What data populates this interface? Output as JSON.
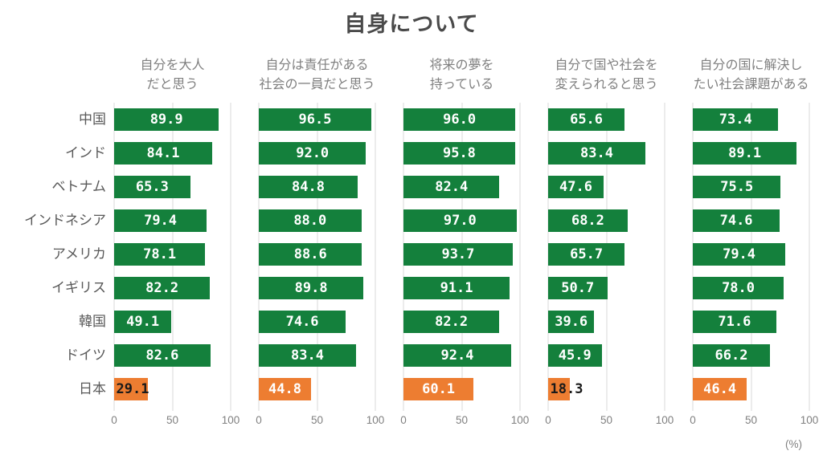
{
  "chart_data": {
    "type": "bar",
    "orientation": "horizontal",
    "title": "自身について",
    "unit_label": "(%)",
    "categories": [
      "中国",
      "インド",
      "ベトナム",
      "インドネシア",
      "アメリカ",
      "イギリス",
      "韓国",
      "ドイツ",
      "日本"
    ],
    "series": [
      {
        "name": "自分を大人\nだと思う",
        "values": [
          89.9,
          84.1,
          65.3,
          79.4,
          78.1,
          82.2,
          49.1,
          82.6,
          29.1
        ]
      },
      {
        "name": "自分は責任がある\n社会の一員だと思う",
        "values": [
          96.5,
          92.0,
          84.8,
          88.0,
          88.6,
          89.8,
          74.6,
          83.4,
          44.8
        ]
      },
      {
        "name": "将来の夢を\n持っている",
        "values": [
          96.0,
          95.8,
          82.4,
          97.0,
          93.7,
          91.1,
          82.2,
          92.4,
          60.1
        ]
      },
      {
        "name": "自分で国や社会を\n変えられると思う",
        "values": [
          65.6,
          83.4,
          47.6,
          68.2,
          65.7,
          50.7,
          39.6,
          45.9,
          18.3
        ]
      },
      {
        "name": "自分の国に解決し\nたい社会課題がある",
        "values": [
          73.4,
          89.1,
          75.5,
          74.6,
          79.4,
          78.0,
          71.6,
          66.2,
          46.4
        ]
      }
    ],
    "xlim": [
      0,
      100
    ],
    "xticks": [
      0,
      50,
      100
    ],
    "value_label_format": "one-decimal",
    "grid": true,
    "legend": "none",
    "colors": {
      "bar_default": "#14803C",
      "bar_highlight": "#ED7D31",
      "highlight_category": "日本",
      "value_label_inside": "#ffffff",
      "value_label_overflow": "#1a1a1a",
      "gridline": "#d9d9d9",
      "title_text": "#4a4a4a",
      "category_text": "#595959",
      "header_text": "#7f7f7f",
      "axis_text": "#808080"
    }
  }
}
